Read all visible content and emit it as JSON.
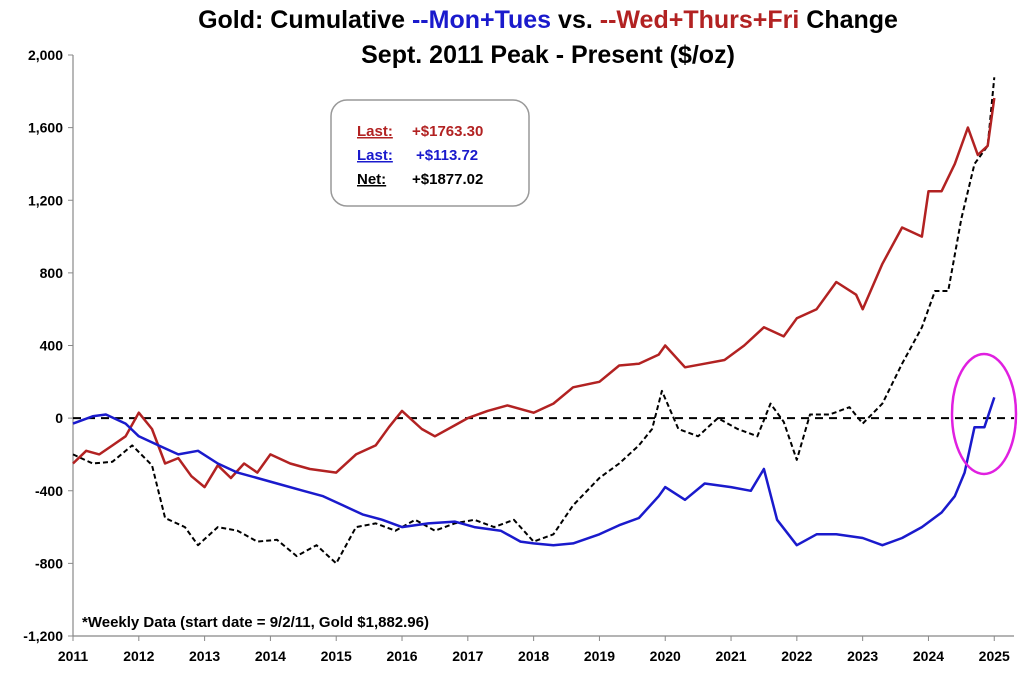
{
  "chart_data": {
    "type": "line",
    "title": {
      "prefix": "Gold: Cumulative ",
      "mon_tues": "--Mon+Tues",
      "vs": " vs. ",
      "wed_fri": "--Wed+Thurs+Fri",
      "suffix": " Change"
    },
    "subtitle": "Sept. 2011 Peak - Present ($/oz)",
    "xlabel": "",
    "ylabel": "",
    "xlim": [
      2011,
      2025.3
    ],
    "ylim": [
      -1200,
      2000
    ],
    "x_ticks": [
      "2011",
      "2012",
      "2013",
      "2014",
      "2015",
      "2016",
      "2017",
      "2018",
      "2019",
      "2020",
      "2021",
      "2022",
      "2023",
      "2024",
      "2025"
    ],
    "y_ticks": [
      "2,000",
      "1,600",
      "1,200",
      "800",
      "400",
      "0",
      "-400",
      "-800",
      "-1,200"
    ],
    "zero_line": "dashed",
    "grid": false,
    "colors": {
      "wed_fri": "#b22222",
      "mon_tues": "#1a1acc",
      "net": "#000000",
      "highlight": "#e020e0"
    },
    "legend_box": {
      "items": [
        {
          "label": "Last:",
          "value": "+$1763.30",
          "color": "#b22222"
        },
        {
          "label": "Last:",
          "value": "+$113.72",
          "color": "#1a1acc"
        },
        {
          "label": "Net:",
          "value": "+$1877.02",
          "color": "#000000"
        }
      ]
    },
    "note": "*Weekly Data (start date = 9/2/11, Gold $1,882.96)",
    "series": [
      {
        "key": "wed_fri",
        "style": "solid",
        "x": [
          2011.0,
          2011.2,
          2011.4,
          2011.6,
          2011.8,
          2012.0,
          2012.2,
          2012.4,
          2012.6,
          2012.8,
          2013.0,
          2013.2,
          2013.4,
          2013.6,
          2013.8,
          2014.0,
          2014.3,
          2014.6,
          2015.0,
          2015.3,
          2015.6,
          2015.8,
          2016.0,
          2016.3,
          2016.5,
          2016.8,
          2017.0,
          2017.3,
          2017.6,
          2018.0,
          2018.3,
          2018.6,
          2019.0,
          2019.3,
          2019.6,
          2019.9,
          2020.0,
          2020.3,
          2020.6,
          2020.9,
          2021.2,
          2021.5,
          2021.8,
          2022.0,
          2022.3,
          2022.6,
          2022.9,
          2023.0,
          2023.3,
          2023.6,
          2023.9,
          2024.0,
          2024.2,
          2024.4,
          2024.6,
          2024.75,
          2024.9,
          2025.0
        ],
        "values": [
          -250,
          -180,
          -200,
          -150,
          -100,
          30,
          -60,
          -250,
          -220,
          -320,
          -380,
          -260,
          -330,
          -250,
          -300,
          -200,
          -250,
          -280,
          -300,
          -200,
          -150,
          -50,
          40,
          -60,
          -100,
          -40,
          0,
          40,
          70,
          30,
          80,
          170,
          200,
          290,
          300,
          350,
          400,
          280,
          300,
          320,
          400,
          500,
          450,
          550,
          600,
          750,
          680,
          600,
          850,
          1050,
          1000,
          1250,
          1250,
          1400,
          1600,
          1450,
          1500,
          1763
        ]
      },
      {
        "key": "mon_tues",
        "style": "solid",
        "x": [
          2011.0,
          2011.3,
          2011.5,
          2011.8,
          2012.0,
          2012.3,
          2012.6,
          2012.9,
          2013.2,
          2013.5,
          2013.8,
          2014.1,
          2014.5,
          2014.8,
          2015.1,
          2015.4,
          2015.7,
          2016.0,
          2016.4,
          2016.8,
          2017.1,
          2017.5,
          2017.8,
          2018.0,
          2018.3,
          2018.6,
          2019.0,
          2019.3,
          2019.6,
          2019.9,
          2020.0,
          2020.3,
          2020.6,
          2021.0,
          2021.3,
          2021.5,
          2021.7,
          2022.0,
          2022.3,
          2022.6,
          2023.0,
          2023.3,
          2023.6,
          2023.9,
          2024.2,
          2024.4,
          2024.55,
          2024.7,
          2024.85,
          2025.0
        ],
        "values": [
          -30,
          10,
          20,
          -30,
          -100,
          -150,
          -200,
          -180,
          -250,
          -300,
          -330,
          -360,
          -400,
          -430,
          -480,
          -530,
          -560,
          -600,
          -580,
          -570,
          -600,
          -620,
          -680,
          -690,
          -700,
          -690,
          -640,
          -590,
          -550,
          -430,
          -380,
          -450,
          -360,
          -380,
          -400,
          -280,
          -560,
          -700,
          -640,
          -640,
          -660,
          -700,
          -660,
          -600,
          -520,
          -430,
          -300,
          -50,
          -50,
          114
        ]
      },
      {
        "key": "net",
        "style": "dashed",
        "x": [
          2011.0,
          2011.3,
          2011.6,
          2011.9,
          2012.2,
          2012.4,
          2012.7,
          2012.9,
          2013.2,
          2013.5,
          2013.8,
          2014.1,
          2014.4,
          2014.7,
          2015.0,
          2015.3,
          2015.6,
          2015.9,
          2016.2,
          2016.5,
          2016.8,
          2017.1,
          2017.4,
          2017.7,
          2018.0,
          2018.3,
          2018.6,
          2019.0,
          2019.3,
          2019.6,
          2019.8,
          2019.95,
          2020.2,
          2020.5,
          2020.8,
          2021.1,
          2021.4,
          2021.6,
          2021.8,
          2022.0,
          2022.2,
          2022.5,
          2022.8,
          2023.0,
          2023.3,
          2023.6,
          2023.9,
          2024.1,
          2024.3,
          2024.5,
          2024.7,
          2024.9,
          2025.0
        ],
        "values": [
          -200,
          -250,
          -240,
          -150,
          -260,
          -550,
          -600,
          -700,
          -600,
          -620,
          -680,
          -670,
          -760,
          -700,
          -800,
          -600,
          -580,
          -620,
          -560,
          -620,
          -580,
          -560,
          -600,
          -560,
          -680,
          -640,
          -480,
          -330,
          -250,
          -150,
          -60,
          150,
          -60,
          -100,
          0,
          -60,
          -100,
          80,
          -20,
          -230,
          20,
          20,
          60,
          -30,
          80,
          300,
          500,
          700,
          700,
          1100,
          1400,
          1500,
          1877
        ]
      }
    ]
  }
}
